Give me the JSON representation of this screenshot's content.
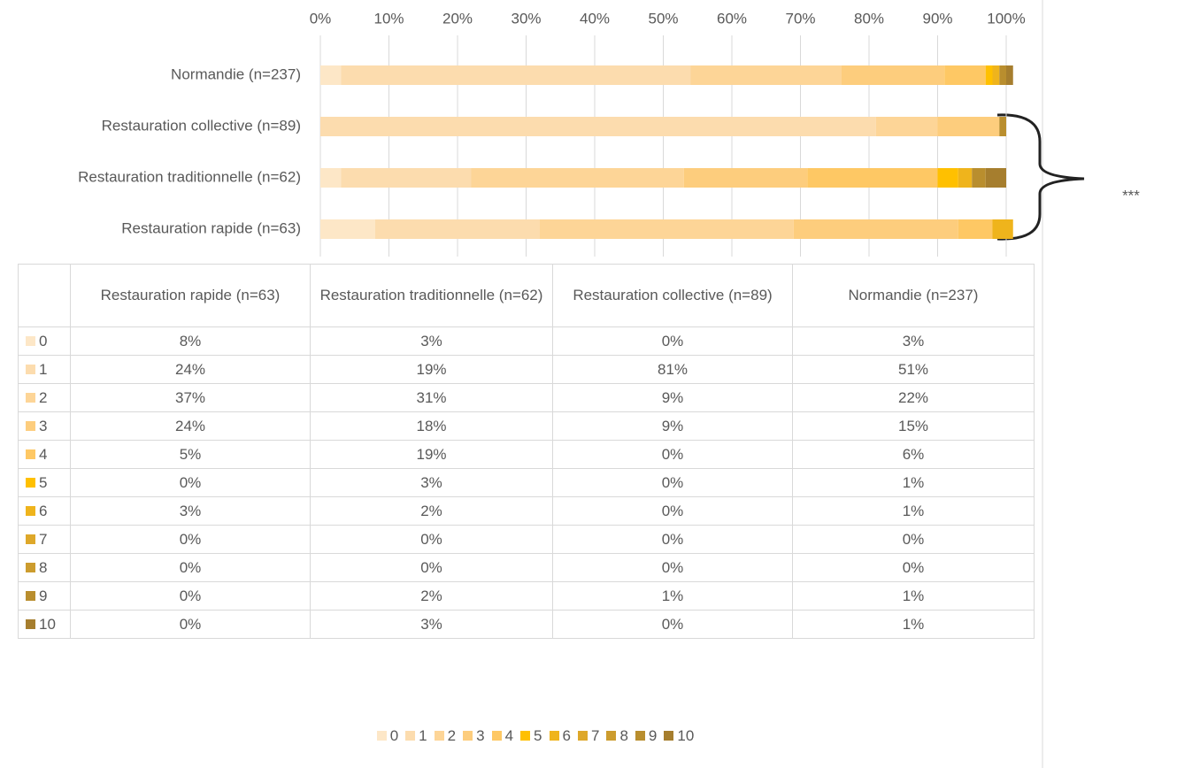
{
  "chart_data": {
    "type": "bar",
    "orientation": "horizontal",
    "stacked": true,
    "categories": [
      "Restauration rapide (n=63)",
      "Restauration traditionnelle (n=62)",
      "Restauration collective (n=89)",
      "Normandie (n=237)"
    ],
    "series": [
      {
        "name": "0",
        "color": "#fde7c7",
        "values": [
          8,
          3,
          0,
          3
        ],
        "value_labels": [
          "8%",
          "3%",
          "0%",
          "3%"
        ]
      },
      {
        "name": "1",
        "color": "#fcdcae",
        "values": [
          24,
          19,
          81,
          51
        ],
        "value_labels": [
          "24%",
          "19%",
          "81%",
          "51%"
        ]
      },
      {
        "name": "2",
        "color": "#fdd597",
        "values": [
          37,
          31,
          9,
          22
        ],
        "value_labels": [
          "37%",
          "31%",
          "9%",
          "22%"
        ]
      },
      {
        "name": "3",
        "color": "#fdcd7d",
        "values": [
          24,
          18,
          9,
          15
        ],
        "value_labels": [
          "24%",
          "18%",
          "9%",
          "15%"
        ]
      },
      {
        "name": "4",
        "color": "#fec864",
        "values": [
          5,
          19,
          0,
          6
        ],
        "value_labels": [
          "5%",
          "19%",
          "0%",
          "6%"
        ]
      },
      {
        "name": "5",
        "color": "#ffc000",
        "values": [
          0,
          3,
          0,
          1
        ],
        "value_labels": [
          "0%",
          "3%",
          "0%",
          "1%"
        ]
      },
      {
        "name": "6",
        "color": "#efb41c",
        "values": [
          3,
          2,
          0,
          1
        ],
        "value_labels": [
          "3%",
          "2%",
          "0%",
          "1%"
        ]
      },
      {
        "name": "7",
        "color": "#dea82a",
        "values": [
          0,
          0,
          0,
          0
        ],
        "value_labels": [
          "0%",
          "0%",
          "0%",
          "0%"
        ]
      },
      {
        "name": "8",
        "color": "#cc9c2e",
        "values": [
          0,
          0,
          0,
          0
        ],
        "value_labels": [
          "0%",
          "0%",
          "0%",
          "0%"
        ]
      },
      {
        "name": "9",
        "color": "#b98e2e",
        "values": [
          0,
          2,
          1,
          1
        ],
        "value_labels": [
          "0%",
          "2%",
          "1%",
          "1%"
        ]
      },
      {
        "name": "10",
        "color": "#a67e2e",
        "values": [
          0,
          3,
          0,
          1
        ],
        "value_labels": [
          "0%",
          "3%",
          "0%",
          "1%"
        ]
      }
    ],
    "xlim": [
      0,
      100
    ],
    "xticks": [
      {
        "value": 0,
        "label": "0%"
      },
      {
        "value": 10,
        "label": "10%"
      },
      {
        "value": 20,
        "label": "20%"
      },
      {
        "value": 30,
        "label": "30%"
      },
      {
        "value": 40,
        "label": "40%"
      },
      {
        "value": 50,
        "label": "50%"
      },
      {
        "value": 60,
        "label": "60%"
      },
      {
        "value": 70,
        "label": "70%"
      },
      {
        "value": 80,
        "label": "80%"
      },
      {
        "value": 90,
        "label": "90%"
      },
      {
        "value": 100,
        "label": "100%"
      }
    ],
    "grid": true,
    "annotation": "***",
    "data_table": true,
    "legend": "bottom"
  }
}
